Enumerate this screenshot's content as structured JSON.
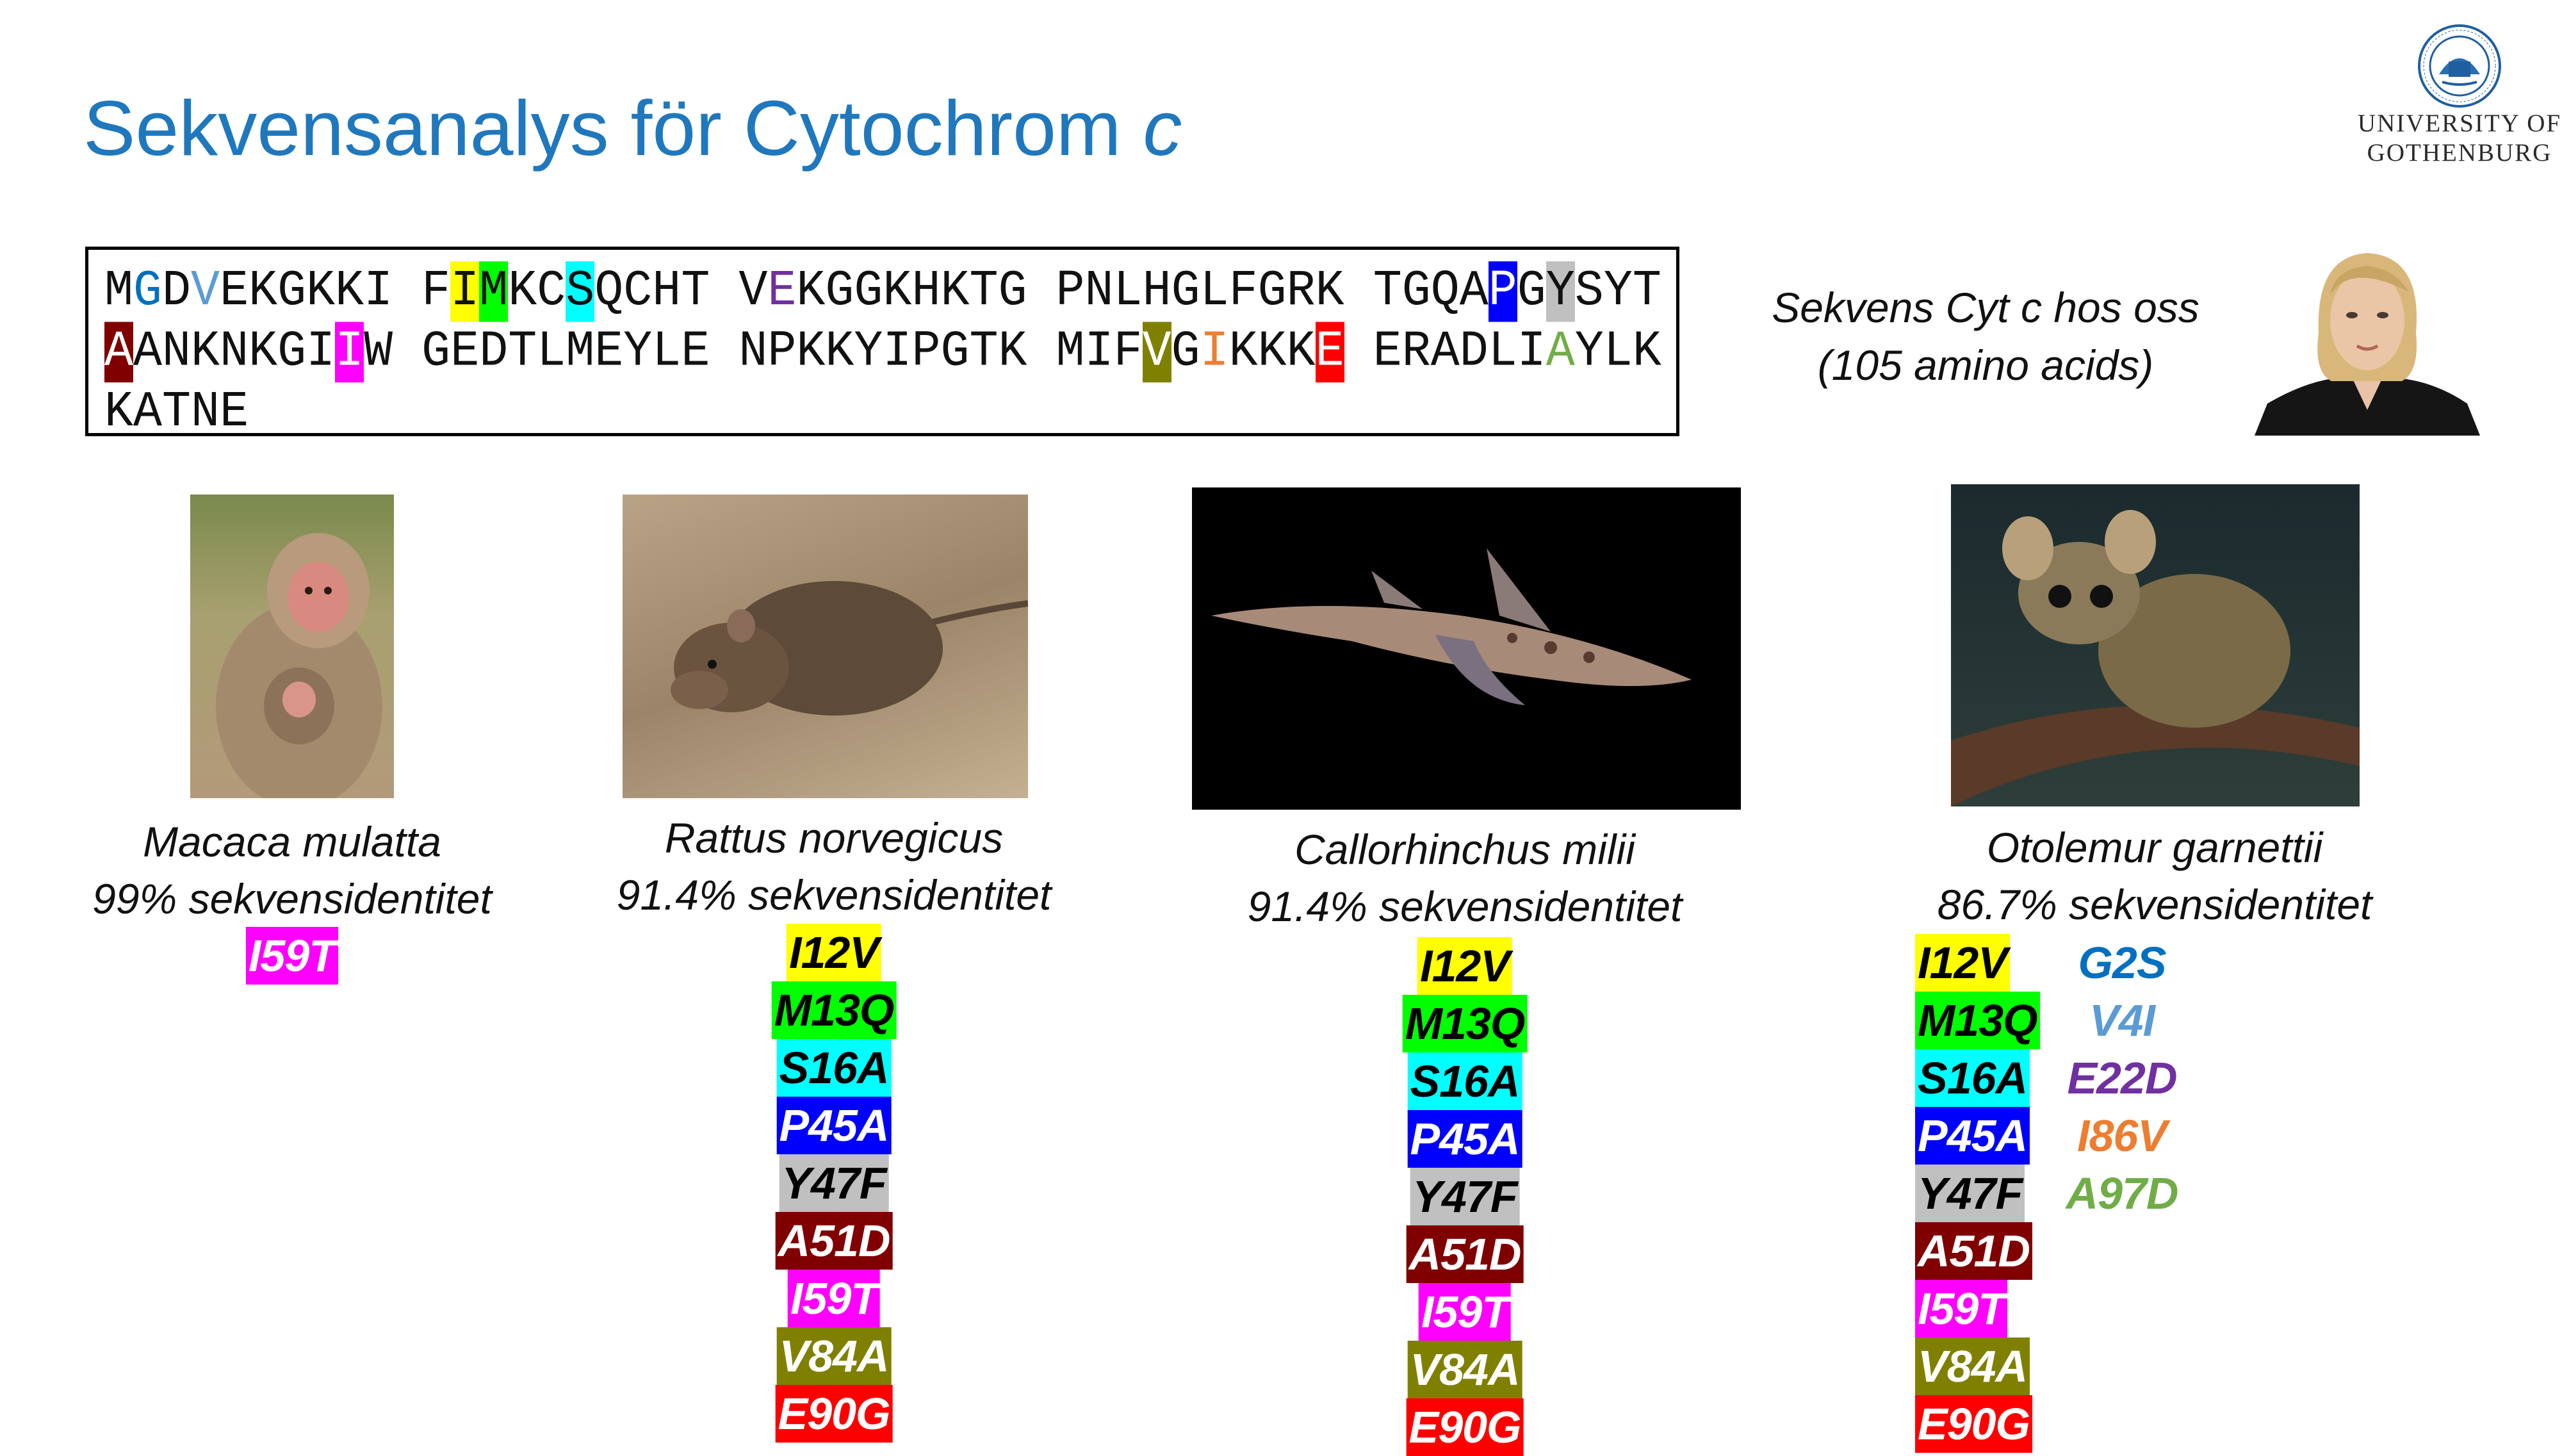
{
  "title": {
    "text": "Sekvensanalys för Cytochrom ",
    "italic_part": "c",
    "color": "#1F78BE"
  },
  "logo": {
    "line1": "UNIVERSITY OF",
    "line2": "GOTHENBURG"
  },
  "sequence": {
    "lines": [
      "MGDVEKGKKI FIMKCSQCHT VEKGGKHKTG PNLHGLFGRK TGQAPGYSYT",
      "AANKNKGIIW GEDTLMEYLE NPKKYIPGTK MIFVGIKKKE ERADLIAYLK",
      "KATNE"
    ],
    "highlights": [
      {
        "residue": 2,
        "fg": "#0070C0"
      },
      {
        "residue": 4,
        "fg": "#5B9BD5"
      },
      {
        "residue": 12,
        "bg": "#FFFF00"
      },
      {
        "residue": 13,
        "bg": "#00FF00"
      },
      {
        "residue": 16,
        "bg": "#00FFFF"
      },
      {
        "residue": 22,
        "fg": "#7030A0"
      },
      {
        "residue": 45,
        "bg": "#0000FF",
        "fg": "#FFFFFF"
      },
      {
        "residue": 47,
        "bg": "#C0C0C0"
      },
      {
        "residue": 51,
        "bg": "#800000",
        "fg": "#FFFFFF"
      },
      {
        "residue": 59,
        "bg": "#FF00FF",
        "fg": "#FFFFFF"
      },
      {
        "residue": 84,
        "bg": "#808000",
        "fg": "#FFFFFF"
      },
      {
        "residue": 86,
        "fg": "#ED7D31"
      },
      {
        "residue": 90,
        "bg": "#FF0000",
        "fg": "#FFFFFF"
      },
      {
        "residue": 97,
        "fg": "#70AD47"
      }
    ]
  },
  "our_sequence": {
    "line1": "Sekvens Cyt c hos oss",
    "line2": "(105 amino acids)"
  },
  "mutation_colors": {
    "I12V": {
      "bg": "#FFFF00",
      "fg": "#000000"
    },
    "M13Q": {
      "bg": "#00FF00",
      "fg": "#000000"
    },
    "S16A": {
      "bg": "#00FFFF",
      "fg": "#000000"
    },
    "P45A": {
      "bg": "#0000FF",
      "fg": "#FFFFFF"
    },
    "Y47F": {
      "bg": "#C0C0C0",
      "fg": "#000000"
    },
    "A51D": {
      "bg": "#800000",
      "fg": "#FFFFFF"
    },
    "I59T": {
      "bg": "#FF00FF",
      "fg": "#FFFFFF"
    },
    "V84A": {
      "bg": "#808000",
      "fg": "#FFFFFF"
    },
    "E90G": {
      "bg": "#FF0000",
      "fg": "#FFFFFF"
    },
    "G2S": {
      "fg": "#0070C0"
    },
    "V4I": {
      "fg": "#5B9BD5"
    },
    "E22D": {
      "fg": "#7030A0"
    },
    "I86V": {
      "fg": "#ED7D31"
    },
    "A97D": {
      "fg": "#70AD47"
    }
  },
  "species": [
    {
      "name": "Macaca mulatta",
      "identity": "99% sekvensidentitet",
      "mutations": [
        "I59T"
      ],
      "extra_mutations": []
    },
    {
      "name": "Rattus norvegicus",
      "identity": "91.4% sekvensidentitet",
      "mutations": [
        "I12V",
        "M13Q",
        "S16A",
        "P45A",
        "Y47F",
        "A51D",
        "I59T",
        "V84A",
        "E90G"
      ],
      "extra_mutations": []
    },
    {
      "name": "Callorhinchus milii",
      "identity": "91.4% sekvensidentitet",
      "mutations": [
        "I12V",
        "M13Q",
        "S16A",
        "P45A",
        "Y47F",
        "A51D",
        "I59T",
        "V84A",
        "E90G"
      ],
      "extra_mutations": []
    },
    {
      "name": "Otolemur garnettii",
      "identity": "86.7% sekvensidentitet",
      "mutations": [
        "I12V",
        "M13Q",
        "S16A",
        "P45A",
        "Y47F",
        "A51D",
        "I59T",
        "V84A",
        "E90G"
      ],
      "extra_mutations": [
        "G2S",
        "V4I",
        "E22D",
        "I86V",
        "A97D"
      ]
    }
  ]
}
